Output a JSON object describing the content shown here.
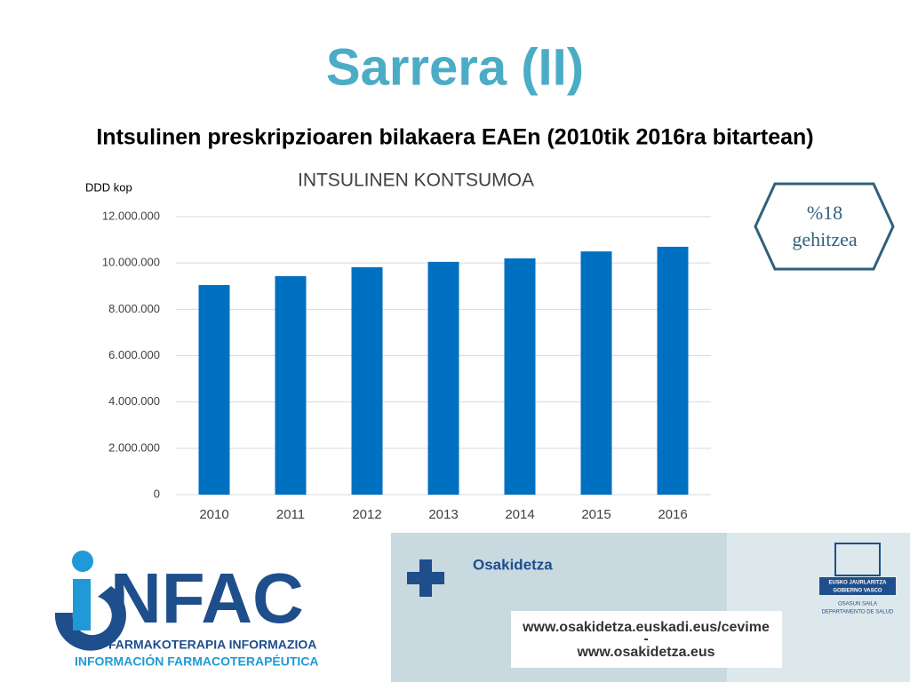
{
  "slide": {
    "title": "Sarrera (II)",
    "subtitle": "Intsulinen preskripzioaren bilakaera EAEn (2010tik 2016ra bitartean)"
  },
  "chart_data": {
    "type": "bar",
    "title": "INTSULINEN KONTSUMOA",
    "y_label": "DDD kop",
    "categories": [
      "2010",
      "2011",
      "2012",
      "2013",
      "2014",
      "2015",
      "2016"
    ],
    "values": [
      9050000,
      9430000,
      9820000,
      10050000,
      10200000,
      10500000,
      10700000
    ],
    "color": "#0070c0",
    "ylim": [
      0,
      12000000
    ],
    "yticks": [
      0,
      {
        "value": 2000000,
        "label": "2.000.000"
      },
      {
        "value": 4000000,
        "label": "4.000.000"
      },
      {
        "value": 6000000,
        "label": "6.000.000"
      },
      {
        "value": 8000000,
        "label": "8.000.000"
      },
      {
        "value": 10000000,
        "label": "10.000.000"
      },
      {
        "value": 12000000,
        "label": "12.000.000"
      }
    ],
    "grid": true
  },
  "callout": {
    "line1": "%18",
    "line2": "gehitzea"
  },
  "footer": {
    "logo": "NFAC",
    "logo_line1": "FARMAKOTERAPIA INFORMAZIOA",
    "logo_line2": "INFORMACIÓN FARMACOTERAPÉUTICA",
    "brand": "Osakidetza",
    "url1": "www.osakidetza.euskadi.eus/cevime",
    "separator": "-",
    "url2": "www.osakidetza.eus",
    "gov1": "EUSKO JAURLARITZA",
    "gov2": "GOBIERNO VASCO",
    "dept1": "OSASUN SAILA",
    "dept2": "DEPARTAMENTO DE SALUD"
  }
}
